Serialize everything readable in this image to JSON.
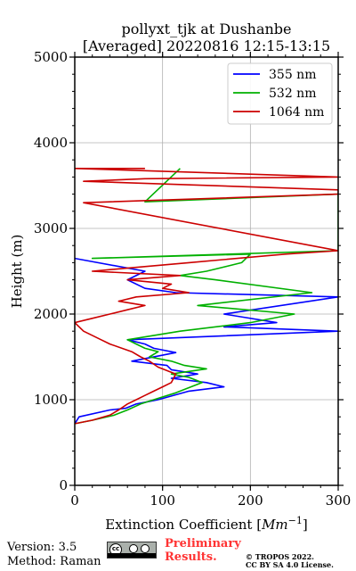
{
  "chart_data": {
    "type": "line",
    "title": "pollyxt_tjk at Dushanbe",
    "subtitle": "[Averaged] 20220816 12:15-13:15",
    "xlabel_prefix": "Extinction Coefficient [",
    "xlabel_unit": "Mm",
    "xlabel_exp": "−1",
    "xlabel_suffix": "]",
    "ylabel": "Height (m)",
    "xlim": [
      0,
      300
    ],
    "ylim": [
      0,
      5000
    ],
    "xticks": [
      "0",
      "100",
      "200",
      "300"
    ],
    "yticks": [
      "0",
      "1000",
      "2000",
      "3000",
      "4000",
      "5000"
    ],
    "grid": true,
    "legend_position": "top-right",
    "series": [
      {
        "name": "355 nm",
        "color": "#0000ff",
        "x": [
          0,
          5,
          40,
          58,
          70,
          95,
          130,
          170,
          150,
          110,
          140,
          110,
          105,
          65,
          115,
          90,
          80,
          60,
          300,
          170,
          230,
          170,
          300,
          115,
          80,
          60,
          80,
          0
        ],
        "y": [
          720,
          800,
          880,
          900,
          950,
          1000,
          1100,
          1150,
          1200,
          1250,
          1300,
          1350,
          1400,
          1450,
          1550,
          1600,
          1650,
          1700,
          1800,
          1850,
          1900,
          2000,
          2200,
          2250,
          2300,
          2400,
          2500,
          2650
        ]
      },
      {
        "name": "532 nm",
        "color": "#00b000",
        "x": [
          0,
          20,
          45,
          60,
          75,
          90,
          115,
          145,
          130,
          110,
          150,
          125,
          110,
          85,
          95,
          80,
          70,
          60,
          120,
          200,
          250,
          140,
          270,
          160,
          120,
          150,
          190,
          200,
          20,
          300,
          300,
          80,
          120
        ],
        "y": [
          720,
          760,
          820,
          880,
          950,
          1000,
          1080,
          1200,
          1260,
          1300,
          1360,
          1400,
          1450,
          1500,
          1560,
          1600,
          1650,
          1700,
          1800,
          1900,
          2000,
          2100,
          2250,
          2400,
          2450,
          2500,
          2600,
          2700,
          2650,
          2740,
          3400,
          3310,
          3700
        ]
      },
      {
        "name": "1064 nm",
        "color": "#cc0000",
        "x": [
          0,
          20,
          40,
          50,
          60,
          70,
          80,
          90,
          100,
          110,
          115,
          95,
          85,
          75,
          65,
          40,
          30,
          10,
          0,
          20,
          40,
          60,
          80,
          50,
          70,
          130,
          100,
          110,
          60,
          120,
          20,
          130,
          240,
          300,
          10,
          300,
          300,
          10,
          80,
          300,
          0,
          80
        ],
        "y": [
          720,
          760,
          820,
          880,
          950,
          1000,
          1050,
          1100,
          1150,
          1200,
          1300,
          1380,
          1450,
          1500,
          1560,
          1650,
          1700,
          1800,
          1900,
          1950,
          2000,
          2050,
          2100,
          2150,
          2200,
          2250,
          2300,
          2350,
          2400,
          2450,
          2500,
          2600,
          2700,
          2740,
          3300,
          3400,
          3450,
          3550,
          3580,
          3600,
          3700,
          3700
        ]
      }
    ]
  },
  "footer": {
    "version": "Version: 3.5",
    "method": "Method: Raman",
    "preliminary_line1": "Preliminary",
    "preliminary_line2": "Results.",
    "copyright_line1": "© TROPOS 2022.",
    "copyright_line2": "CC BY SA 4.0 License.",
    "cc_logo_text": "cc"
  }
}
